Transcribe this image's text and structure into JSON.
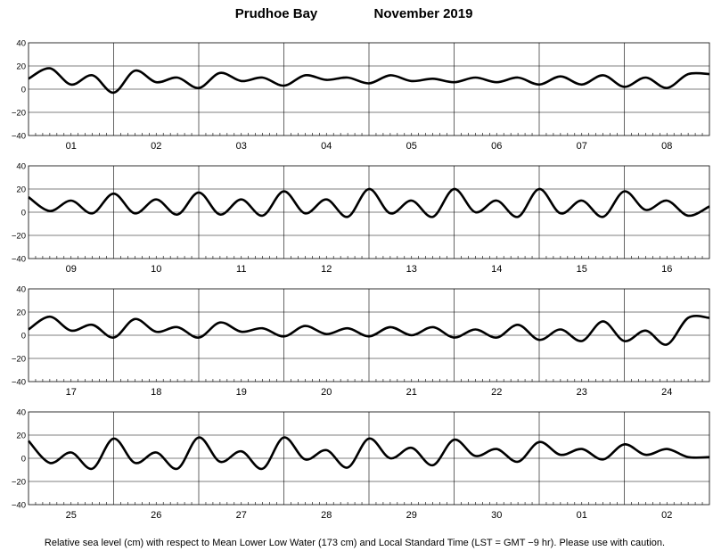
{
  "chart_data": {
    "type": "line",
    "title_station": "Prudhoe Bay",
    "title_period": "November   2019",
    "footnote": "Relative sea level (cm) with respect to Mean Lower Low Water (173 cm) and Local Standard Time (LST = GMT −9 hr). Please use with caution.",
    "ylim": [
      -40,
      40
    ],
    "yticks": [
      "40",
      "20",
      "0",
      "−20",
      "−40"
    ],
    "grid": true,
    "panels": [
      {
        "days": [
          "01",
          "02",
          "03",
          "04",
          "05",
          "06",
          "07",
          "08"
        ],
        "x_hours": [
          0,
          6,
          12,
          18,
          24,
          30,
          36,
          42,
          48,
          54,
          60,
          66,
          72,
          78,
          84,
          90,
          96,
          102,
          108,
          114,
          120,
          126,
          132,
          138,
          144,
          150,
          156,
          162,
          168,
          174,
          180,
          186,
          192
        ],
        "y_cm": [
          9,
          18,
          4,
          12,
          -3,
          16,
          6,
          10,
          1,
          14,
          7,
          10,
          3,
          12,
          8,
          10,
          5,
          12,
          7,
          9,
          6,
          10,
          6,
          10,
          4,
          11,
          4,
          12,
          2,
          10,
          1,
          13,
          13
        ]
      },
      {
        "days": [
          "09",
          "10",
          "11",
          "12",
          "13",
          "14",
          "15",
          "16"
        ],
        "x_hours": [
          0,
          6,
          12,
          18,
          24,
          30,
          36,
          42,
          48,
          54,
          60,
          66,
          72,
          78,
          84,
          90,
          96,
          102,
          108,
          114,
          120,
          126,
          132,
          138,
          144,
          150,
          156,
          162,
          168,
          174,
          180,
          186,
          192
        ],
        "y_cm": [
          13,
          1,
          10,
          -1,
          16,
          -1,
          11,
          -2,
          17,
          -2,
          11,
          -3,
          18,
          -1,
          11,
          -4,
          20,
          -1,
          10,
          -4,
          20,
          0,
          10,
          -4,
          20,
          -1,
          10,
          -4,
          18,
          2,
          10,
          -3,
          5
        ]
      },
      {
        "days": [
          "17",
          "18",
          "19",
          "20",
          "21",
          "22",
          "23",
          "24"
        ],
        "x_hours": [
          0,
          6,
          12,
          18,
          24,
          30,
          36,
          42,
          48,
          54,
          60,
          66,
          72,
          78,
          84,
          90,
          96,
          102,
          108,
          114,
          120,
          126,
          132,
          138,
          144,
          150,
          156,
          162,
          168,
          174,
          180,
          186,
          192
        ],
        "y_cm": [
          5,
          16,
          4,
          9,
          -2,
          14,
          3,
          7,
          -2,
          11,
          3,
          6,
          -1,
          8,
          1,
          6,
          -1,
          7,
          0,
          7,
          -2,
          5,
          -2,
          9,
          -4,
          5,
          -5,
          12,
          -5,
          4,
          -8,
          15,
          15
        ]
      },
      {
        "days": [
          "25",
          "26",
          "27",
          "28",
          "29",
          "30",
          "01",
          "02"
        ],
        "x_hours": [
          0,
          6,
          12,
          18,
          24,
          30,
          36,
          42,
          48,
          54,
          60,
          66,
          72,
          78,
          84,
          90,
          96,
          102,
          108,
          114,
          120,
          126,
          132,
          138,
          144,
          150,
          156,
          162,
          168,
          174,
          180,
          186,
          192
        ],
        "y_cm": [
          15,
          -4,
          5,
          -9,
          17,
          -4,
          5,
          -9,
          18,
          -3,
          6,
          -9,
          18,
          -1,
          7,
          -8,
          17,
          0,
          9,
          -6,
          16,
          2,
          8,
          -3,
          14,
          3,
          8,
          -1,
          12,
          3,
          8,
          1,
          1
        ]
      }
    ]
  }
}
